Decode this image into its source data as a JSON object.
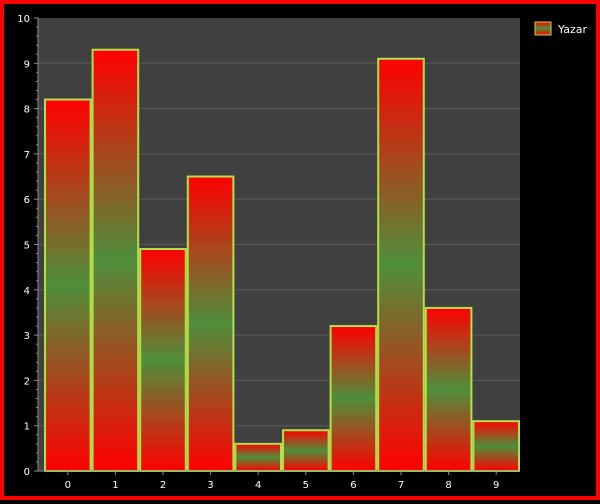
{
  "chart_data": {
    "type": "bar",
    "categories": [
      "0",
      "1",
      "2",
      "3",
      "4",
      "5",
      "6",
      "7",
      "8",
      "9"
    ],
    "series": [
      {
        "name": "Yazar",
        "values": [
          8.2,
          9.3,
          4.9,
          6.5,
          0.6,
          0.9,
          3.2,
          9.1,
          3.6,
          1.1
        ]
      }
    ],
    "title": "",
    "xlabel": "",
    "ylabel": "",
    "ylim": [
      0,
      10
    ],
    "yticks": [
      "0",
      "1",
      "2",
      "3",
      "4",
      "5",
      "6",
      "7",
      "8",
      "9",
      "10"
    ],
    "grid": true,
    "legend": "top-right",
    "colors": {
      "frame_border": "#ff0000",
      "background": "#000000",
      "plot_background": "#404040",
      "gridline": "#5a5a5a",
      "axis": "#8c8c8c",
      "bar_edge": "#b2e04a",
      "bar_gradient_end": "#ff0000",
      "bar_gradient_mid": "#4f8f3a",
      "text": "#ffffff"
    }
  }
}
